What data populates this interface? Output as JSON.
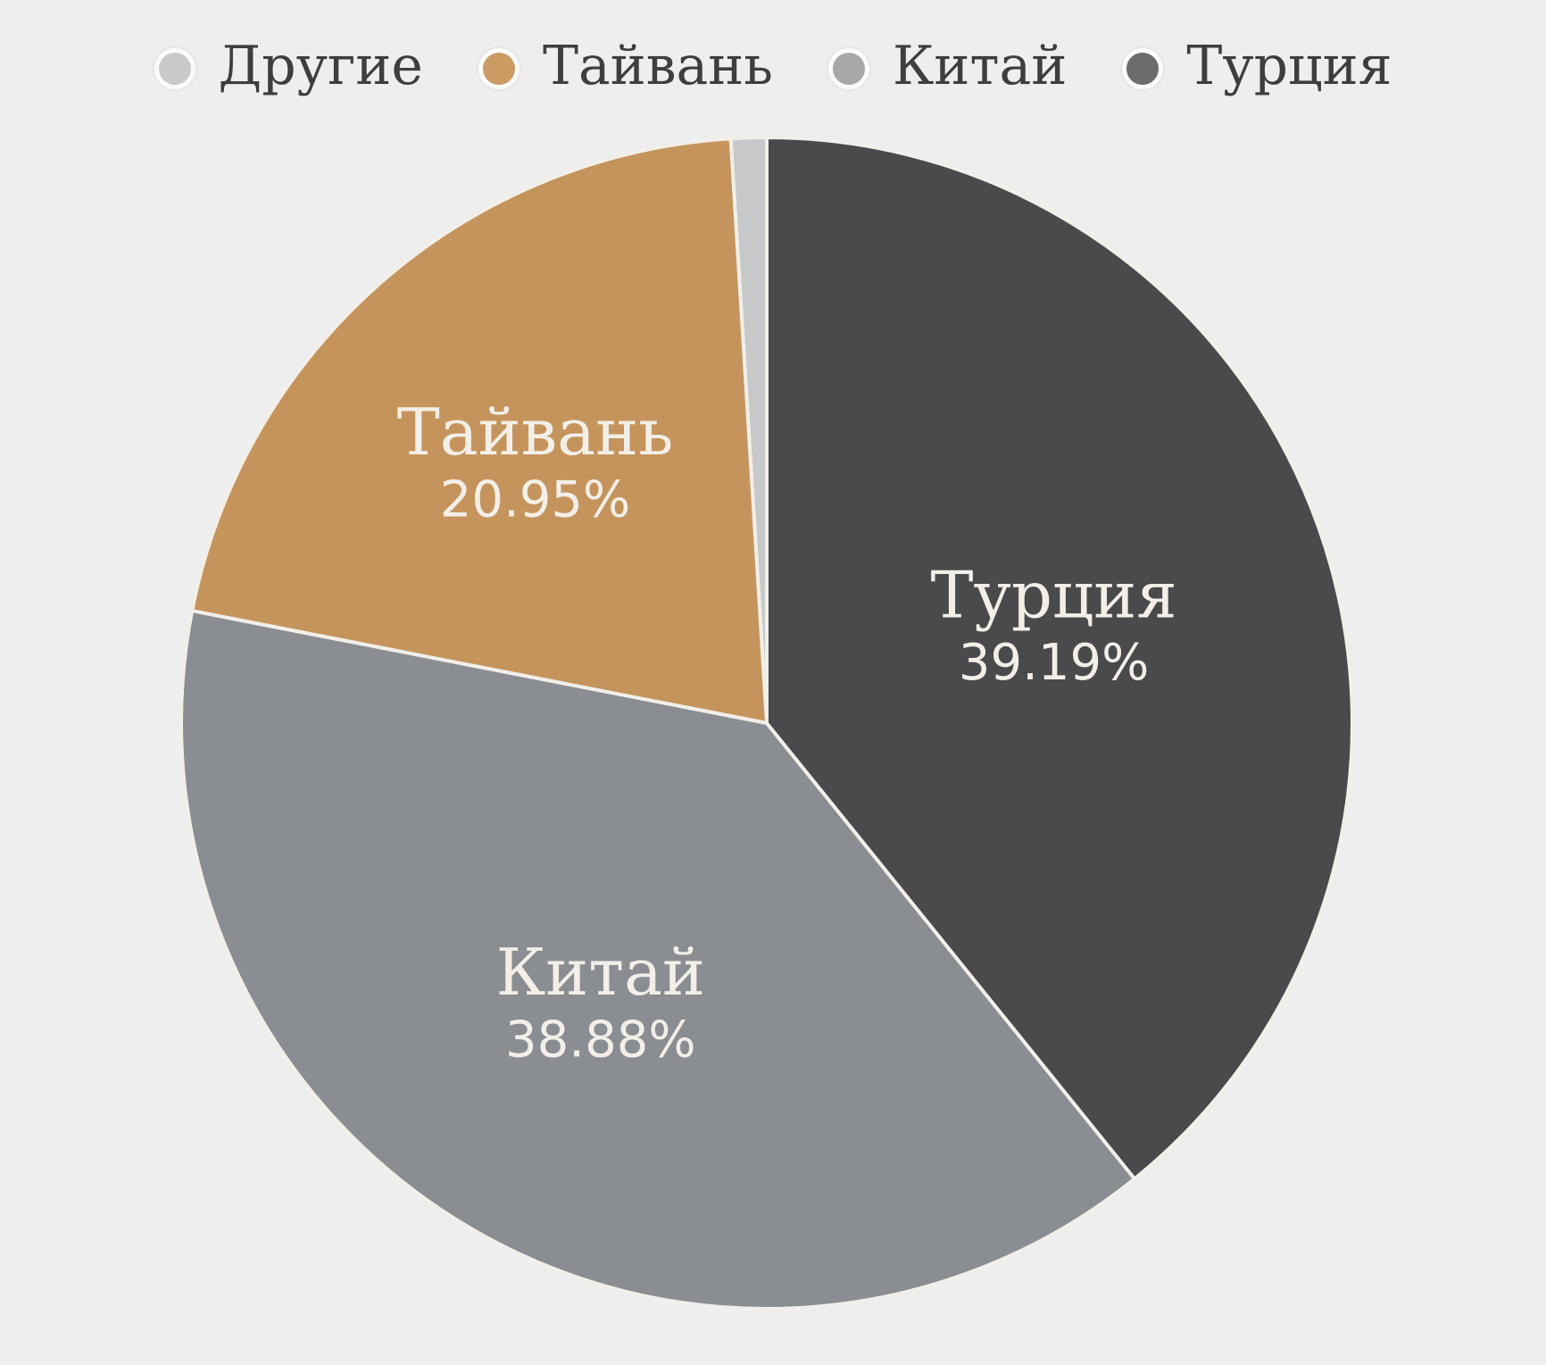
{
  "chart_data": {
    "type": "pie",
    "title": "",
    "legend_position": "top",
    "direction": "counterclockwise_from_top",
    "background_color": "#efeeee",
    "slice_border_color": "#f2efe9",
    "label_text_color": "#f3efe8",
    "legend_text_color": "#3e3e3e",
    "slices": [
      {
        "key": "others",
        "label": "Другие",
        "value": 0.98,
        "display_pct": "",
        "color": "#c7c8c9",
        "legend_color": "#c9c9c9",
        "show_label": false
      },
      {
        "key": "taiwan",
        "label": "Тайвань",
        "value": 20.95,
        "display_pct": "20.95%",
        "color": "#c5945c",
        "legend_color": "#cb9b64",
        "show_label": true
      },
      {
        "key": "china",
        "label": "Китай",
        "value": 38.88,
        "display_pct": "38.88%",
        "color": "#8a8d92",
        "legend_color": "#a8a8a8",
        "show_label": true
      },
      {
        "key": "turkey",
        "label": "Турция",
        "value": 39.19,
        "display_pct": "39.19%",
        "color": "#4a4a4c",
        "legend_color": "#6c6c6c",
        "show_label": true
      }
    ]
  }
}
